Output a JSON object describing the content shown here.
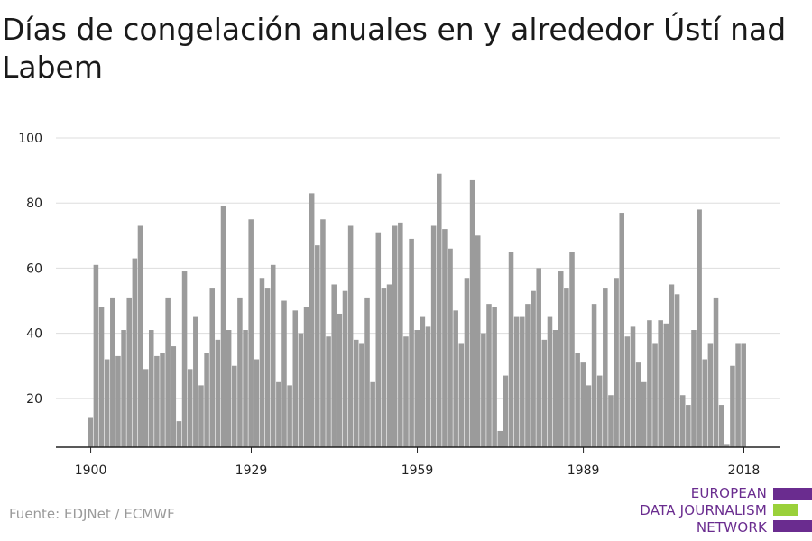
{
  "title": "Días de congelación anuales en y alrededor Ústí nad Labem",
  "source": "Fuente: EDJNet / ECMWF",
  "logo": {
    "line1": "EUROPEAN",
    "line2": "DATA JOURNALISM",
    "line3": "NETWORK",
    "colors": {
      "primary": "#6a2c8f",
      "accent": "#9ad13a"
    }
  },
  "colors": {
    "bar": "#9b9b9b",
    "grid": "#dddddd",
    "axis": "#222222"
  },
  "chart_data": {
    "type": "bar",
    "title": "Días de congelación anuales en y alrededor Ústí nad Labem",
    "xlabel": "",
    "ylabel": "",
    "ylim": [
      5,
      100
    ],
    "yticks": [
      20,
      40,
      60,
      80,
      100
    ],
    "xticks": [
      1900,
      1929,
      1959,
      1989,
      2018
    ],
    "grid": true,
    "x": [
      1900,
      1901,
      1902,
      1903,
      1904,
      1905,
      1906,
      1907,
      1908,
      1909,
      1910,
      1911,
      1912,
      1913,
      1914,
      1915,
      1916,
      1917,
      1918,
      1919,
      1920,
      1921,
      1922,
      1923,
      1924,
      1925,
      1926,
      1927,
      1928,
      1929,
      1930,
      1931,
      1932,
      1933,
      1934,
      1935,
      1936,
      1937,
      1938,
      1939,
      1940,
      1941,
      1942,
      1943,
      1944,
      1945,
      1946,
      1947,
      1948,
      1949,
      1950,
      1951,
      1952,
      1953,
      1954,
      1955,
      1956,
      1957,
      1958,
      1959,
      1960,
      1961,
      1962,
      1963,
      1964,
      1965,
      1966,
      1967,
      1968,
      1969,
      1970,
      1971,
      1972,
      1973,
      1974,
      1975,
      1976,
      1977,
      1978,
      1979,
      1980,
      1981,
      1982,
      1983,
      1984,
      1985,
      1986,
      1987,
      1988,
      1989,
      1990,
      1991,
      1992,
      1993,
      1994,
      1995,
      1996,
      1997,
      1998,
      1999,
      2000,
      2001,
      2002,
      2003,
      2004,
      2005,
      2006,
      2007,
      2008,
      2009,
      2010,
      2011,
      2012,
      2013,
      2014,
      2015,
      2016,
      2017,
      2018
    ],
    "values": [
      14,
      61,
      48,
      32,
      51,
      33,
      41,
      51,
      63,
      73,
      29,
      41,
      33,
      34,
      51,
      36,
      13,
      59,
      29,
      45,
      24,
      34,
      54,
      38,
      79,
      41,
      30,
      51,
      41,
      75,
      32,
      57,
      54,
      61,
      25,
      50,
      24,
      47,
      40,
      48,
      83,
      67,
      75,
      39,
      55,
      46,
      53,
      73,
      38,
      37,
      51,
      25,
      71,
      54,
      55,
      73,
      74,
      39,
      69,
      41,
      45,
      42,
      73,
      89,
      72,
      66,
      47,
      37,
      57,
      87,
      70,
      40,
      49,
      48,
      10,
      27,
      65,
      45,
      45,
      49,
      53,
      60,
      38,
      45,
      41,
      59,
      54,
      65,
      34,
      31,
      24,
      49,
      27,
      54,
      21,
      57,
      77,
      39,
      42,
      31,
      25,
      44,
      37,
      44,
      43,
      55,
      52,
      21,
      18,
      41,
      78,
      32,
      37,
      51,
      18,
      6,
      30,
      37,
      37
    ]
  }
}
